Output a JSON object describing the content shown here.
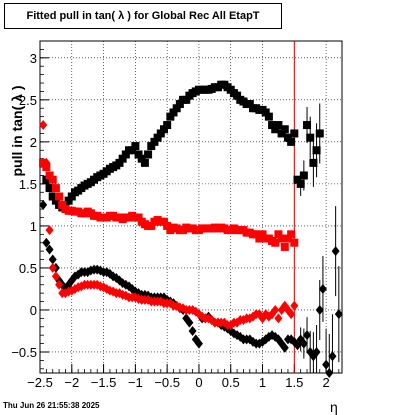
{
  "chart_data": {
    "type": "scatter",
    "title": "Fitted pull in tan( λ ) for Global Rec All EtapT",
    "xlabel": "η",
    "ylabel": "pull in tan( λ )",
    "xlim": [
      -2.5,
      2.25
    ],
    "ylim": [
      -0.75,
      3.2
    ],
    "xticks": [
      "−2.5",
      "−2",
      "−1.5",
      "−1",
      "−0.5",
      "0",
      "0.5",
      "1",
      "1.5",
      "2"
    ],
    "yticks": [
      "−0.5",
      "0",
      "0.5",
      "1",
      "1.5",
      "2",
      "2.5",
      "3"
    ],
    "grid": true,
    "vertical_line": {
      "x": 1.5,
      "color": "#cc0000"
    },
    "series": [
      {
        "marker": "square",
        "color": "#000000",
        "x": [
          -2.45,
          -2.4,
          -2.35,
          -2.3,
          -2.25,
          -2.2,
          -2.15,
          -2.1,
          -2.05,
          -2.0,
          -1.95,
          -1.9,
          -1.85,
          -1.8,
          -1.75,
          -1.7,
          -1.65,
          -1.6,
          -1.55,
          -1.5,
          -1.45,
          -1.4,
          -1.35,
          -1.3,
          -1.25,
          -1.2,
          -1.15,
          -1.1,
          -1.05,
          -1.0,
          -0.95,
          -0.9,
          -0.85,
          -0.8,
          -0.75,
          -0.7,
          -0.65,
          -0.6,
          -0.55,
          -0.5,
          -0.45,
          -0.4,
          -0.35,
          -0.3,
          -0.25,
          -0.2,
          -0.15,
          -0.1,
          -0.05,
          0.0,
          0.05,
          0.1,
          0.15,
          0.2,
          0.25,
          0.3,
          0.35,
          0.4,
          0.45,
          0.5,
          0.55,
          0.6,
          0.65,
          0.7,
          0.75,
          0.8,
          0.85,
          0.9,
          0.95,
          1.0,
          1.05,
          1.1,
          1.15,
          1.2,
          1.25,
          1.3,
          1.35,
          1.4,
          1.45,
          1.5,
          1.55,
          1.6,
          1.65,
          1.7,
          1.75,
          1.8,
          1.85,
          1.9
        ],
        "y": [
          1.75,
          1.55,
          1.45,
          1.35,
          1.3,
          1.25,
          1.22,
          1.25,
          1.3,
          1.35,
          1.4,
          1.42,
          1.45,
          1.48,
          1.5,
          1.52,
          1.55,
          1.58,
          1.6,
          1.62,
          1.65,
          1.68,
          1.7,
          1.72,
          1.75,
          1.8,
          1.85,
          1.9,
          1.9,
          1.95,
          1.85,
          1.8,
          1.75,
          1.85,
          1.95,
          2.0,
          2.05,
          2.1,
          2.15,
          2.2,
          2.3,
          2.35,
          2.4,
          2.45,
          2.5,
          2.5,
          2.55,
          2.58,
          2.6,
          2.62,
          2.62,
          2.62,
          2.62,
          2.63,
          2.65,
          2.65,
          2.68,
          2.68,
          2.65,
          2.62,
          2.58,
          2.55,
          2.5,
          2.48,
          2.45,
          2.45,
          2.4,
          2.4,
          2.38,
          2.38,
          2.35,
          2.3,
          2.2,
          2.15,
          2.2,
          2.1,
          2.15,
          2.05,
          2.0,
          2.1,
          1.55,
          1.5,
          1.6,
          2.2,
          2.05,
          1.75,
          1.9,
          2.1
        ]
      },
      {
        "marker": "square",
        "color": "#ff0000",
        "x": [
          -2.45,
          -2.4,
          -2.35,
          -2.3,
          -2.25,
          -2.2,
          -2.15,
          -2.1,
          -2.05,
          -2.0,
          -1.95,
          -1.9,
          -1.85,
          -1.8,
          -1.75,
          -1.7,
          -1.65,
          -1.6,
          -1.55,
          -1.5,
          -1.45,
          -1.4,
          -1.35,
          -1.3,
          -1.25,
          -1.2,
          -1.15,
          -1.1,
          -1.05,
          -1.0,
          -0.95,
          -0.9,
          -0.85,
          -0.8,
          -0.75,
          -0.7,
          -0.65,
          -0.6,
          -0.55,
          -0.5,
          -0.45,
          -0.4,
          -0.35,
          -0.3,
          -0.25,
          -0.2,
          -0.15,
          -0.1,
          -0.05,
          0.0,
          0.05,
          0.1,
          0.15,
          0.2,
          0.25,
          0.3,
          0.35,
          0.4,
          0.45,
          0.5,
          0.55,
          0.6,
          0.65,
          0.7,
          0.75,
          0.8,
          0.85,
          0.9,
          0.95,
          1.0,
          1.05,
          1.1,
          1.15,
          1.2,
          1.25,
          1.3,
          1.35,
          1.4,
          1.45,
          1.5
        ],
        "y": [
          1.75,
          1.7,
          1.6,
          1.55,
          1.45,
          1.35,
          1.25,
          1.2,
          1.18,
          1.18,
          1.17,
          1.17,
          1.15,
          1.15,
          1.17,
          1.15,
          1.12,
          1.12,
          1.1,
          1.1,
          1.1,
          1.12,
          1.12,
          1.1,
          1.1,
          1.08,
          1.1,
          1.1,
          1.12,
          1.1,
          1.1,
          1.05,
          1.02,
          1.0,
          1.0,
          1.05,
          1.07,
          1.05,
          1.05,
          1.0,
          0.95,
          0.98,
          0.97,
          0.95,
          0.95,
          0.98,
          0.97,
          0.97,
          0.95,
          0.95,
          0.97,
          0.97,
          0.97,
          0.97,
          0.98,
          0.97,
          0.98,
          0.97,
          0.95,
          0.95,
          0.97,
          0.95,
          0.95,
          0.95,
          0.92,
          0.92,
          0.9,
          0.9,
          0.85,
          0.9,
          0.85,
          0.85,
          0.82,
          0.8,
          0.9,
          0.85,
          0.75,
          0.85,
          0.9,
          0.8
        ]
      },
      {
        "marker": "diamond",
        "color": "#000000",
        "x": [
          -2.45,
          -2.4,
          -2.35,
          -2.3,
          -2.25,
          -2.2,
          -2.15,
          -2.1,
          -2.05,
          -2.0,
          -1.95,
          -1.9,
          -1.85,
          -1.8,
          -1.75,
          -1.7,
          -1.65,
          -1.6,
          -1.55,
          -1.5,
          -1.45,
          -1.4,
          -1.35,
          -1.3,
          -1.25,
          -1.2,
          -1.15,
          -1.1,
          -1.05,
          -1.0,
          -0.95,
          -0.9,
          -0.85,
          -0.8,
          -0.75,
          -0.7,
          -0.65,
          -0.6,
          -0.55,
          -0.5,
          -0.45,
          -0.4,
          -0.35,
          -0.3,
          -0.25,
          -0.2,
          -0.15,
          -0.1,
          -0.05,
          0.0,
          0.05,
          0.1,
          0.15,
          0.2,
          0.25,
          0.3,
          0.35,
          0.4,
          0.45,
          0.5,
          0.55,
          0.6,
          0.65,
          0.7,
          0.75,
          0.8,
          0.85,
          0.9,
          0.95,
          1.0,
          1.05,
          1.1,
          1.15,
          1.2,
          1.25,
          1.3,
          1.35,
          1.4,
          1.45,
          1.5,
          1.55,
          1.6,
          1.65,
          1.7,
          1.75,
          1.8,
          1.85,
          1.9,
          1.95,
          2.0,
          2.05,
          2.1,
          2.15,
          2.2
        ],
        "y": [
          1.25,
          0.8,
          0.72,
          0.6,
          0.5,
          0.35,
          0.3,
          0.25,
          0.3,
          0.35,
          0.4,
          0.42,
          0.45,
          0.45,
          0.45,
          0.47,
          0.48,
          0.48,
          0.47,
          0.45,
          0.45,
          0.43,
          0.4,
          0.38,
          0.35,
          0.32,
          0.3,
          0.28,
          0.25,
          0.22,
          0.2,
          0.18,
          0.18,
          0.17,
          0.15,
          0.15,
          0.15,
          0.15,
          0.15,
          0.12,
          0.1,
          0.08,
          0.05,
          0.02,
          0.0,
          -0.1,
          -0.15,
          -0.25,
          -0.35,
          -0.4,
          -0.1,
          -0.1,
          -0.08,
          -0.12,
          -0.15,
          -0.15,
          -0.18,
          -0.2,
          -0.22,
          -0.25,
          -0.28,
          -0.3,
          -0.32,
          -0.35,
          -0.35,
          -0.35,
          -0.38,
          -0.4,
          -0.4,
          -0.38,
          -0.35,
          -0.32,
          -0.3,
          -0.32,
          -0.35,
          -0.4,
          -0.45,
          -0.35,
          -0.35,
          -0.38,
          -0.42,
          -0.35,
          -0.4,
          -0.3,
          -0.5,
          -0.55,
          -0.5,
          0.0,
          0.25,
          -0.65,
          -0.75,
          -0.55,
          0.7,
          -0.05
        ]
      },
      {
        "marker": "diamond",
        "color": "#ff0000",
        "x": [
          -2.45,
          -2.4,
          -2.35,
          -2.3,
          -2.25,
          -2.2,
          -2.15,
          -2.1,
          -2.05,
          -2.0,
          -1.95,
          -1.9,
          -1.85,
          -1.8,
          -1.75,
          -1.7,
          -1.65,
          -1.6,
          -1.55,
          -1.5,
          -1.45,
          -1.4,
          -1.35,
          -1.3,
          -1.25,
          -1.2,
          -1.15,
          -1.1,
          -1.05,
          -1.0,
          -0.95,
          -0.9,
          -0.85,
          -0.8,
          -0.75,
          -0.7,
          -0.65,
          -0.6,
          -0.55,
          -0.5,
          -0.45,
          -0.4,
          -0.35,
          -0.3,
          -0.25,
          -0.2,
          -0.15,
          -0.1,
          -0.05,
          0.0,
          0.05,
          0.1,
          0.15,
          0.2,
          0.25,
          0.3,
          0.35,
          0.4,
          0.45,
          0.5,
          0.55,
          0.6,
          0.65,
          0.7,
          0.75,
          0.8,
          0.85,
          0.9,
          0.95,
          1.0,
          1.05,
          1.1,
          1.15,
          1.2,
          1.25,
          1.3,
          1.35,
          1.4,
          1.45,
          1.5
        ],
        "y": [
          2.2,
          1.75,
          0.95,
          0.5,
          0.4,
          0.3,
          0.2,
          0.2,
          0.22,
          0.23,
          0.25,
          0.27,
          0.28,
          0.3,
          0.3,
          0.3,
          0.3,
          0.3,
          0.28,
          0.27,
          0.25,
          0.23,
          0.22,
          0.2,
          0.2,
          0.18,
          0.17,
          0.15,
          0.15,
          0.15,
          0.13,
          0.12,
          0.12,
          0.12,
          0.1,
          0.1,
          0.1,
          0.1,
          0.08,
          0.08,
          0.08,
          0.05,
          0.05,
          0.03,
          0.02,
          0.0,
          0.0,
          0.0,
          -0.02,
          -0.05,
          -0.08,
          -0.1,
          -0.1,
          -0.12,
          -0.15,
          -0.15,
          -0.15,
          -0.15,
          -0.18,
          -0.18,
          -0.15,
          -0.15,
          -0.12,
          -0.12,
          -0.1,
          -0.1,
          -0.08,
          -0.05,
          -0.05,
          -0.1,
          -0.05,
          -0.08,
          -0.05,
          0.0,
          -0.1,
          0.0,
          0.05,
          0.0,
          -0.05,
          0.05
        ]
      }
    ]
  },
  "footer": {
    "timestamp": "Thu Jun 26 21:55:38 2025"
  }
}
